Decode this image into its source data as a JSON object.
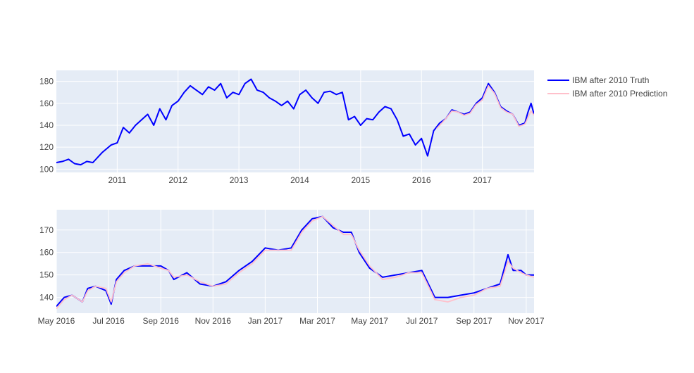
{
  "chart_data": [
    {
      "type": "line",
      "panel": "top",
      "xlabel": "",
      "ylabel": "",
      "xlim": [
        2010.0,
        2017.85
      ],
      "ylim": [
        97,
        190
      ],
      "x_ticks": [
        2011,
        2012,
        2013,
        2014,
        2015,
        2016,
        2017
      ],
      "x_tick_labels": [
        "2011",
        "2012",
        "2013",
        "2014",
        "2015",
        "2016",
        "2017"
      ],
      "y_ticks": [
        100,
        120,
        140,
        160,
        180
      ],
      "y_tick_labels": [
        "100",
        "120",
        "140",
        "160",
        "180"
      ],
      "grid": true,
      "series": [
        {
          "name": "IBM after 2010 Truth",
          "color": "#0000ff",
          "x": [
            2010.0,
            2010.1,
            2010.2,
            2010.3,
            2010.4,
            2010.5,
            2010.6,
            2010.75,
            2010.9,
            2011.0,
            2011.1,
            2011.2,
            2011.3,
            2011.4,
            2011.5,
            2011.6,
            2011.7,
            2011.8,
            2011.9,
            2012.0,
            2012.1,
            2012.2,
            2012.3,
            2012.4,
            2012.5,
            2012.6,
            2012.7,
            2012.8,
            2012.9,
            2013.0,
            2013.1,
            2013.2,
            2013.3,
            2013.4,
            2013.5,
            2013.6,
            2013.7,
            2013.8,
            2013.9,
            2014.0,
            2014.1,
            2014.2,
            2014.3,
            2014.4,
            2014.5,
            2014.6,
            2014.7,
            2014.8,
            2014.9,
            2015.0,
            2015.1,
            2015.2,
            2015.3,
            2015.4,
            2015.5,
            2015.6,
            2015.7,
            2015.8,
            2015.9,
            2016.0,
            2016.1,
            2016.2,
            2016.3,
            2016.4,
            2016.5,
            2016.6,
            2016.7,
            2016.8,
            2016.9,
            2017.0,
            2017.1,
            2017.2,
            2017.3,
            2017.4,
            2017.5,
            2017.6,
            2017.7,
            2017.75,
            2017.8,
            2017.85
          ],
          "y": [
            106,
            107,
            109,
            105,
            104,
            107,
            106,
            115,
            122,
            124,
            138,
            133,
            140,
            145,
            150,
            140,
            155,
            145,
            158,
            162,
            170,
            176,
            172,
            168,
            175,
            172,
            178,
            165,
            170,
            168,
            178,
            182,
            172,
            170,
            165,
            162,
            158,
            162,
            155,
            168,
            172,
            165,
            160,
            170,
            171,
            168,
            170,
            145,
            148,
            140,
            146,
            145,
            152,
            157,
            155,
            145,
            130,
            132,
            122,
            128,
            112,
            135,
            142,
            146,
            154,
            152,
            150,
            152,
            160,
            165,
            178,
            170,
            157,
            153,
            150,
            140,
            142,
            152,
            160,
            150
          ]
        },
        {
          "name": "IBM after 2010 Prediction",
          "color": "#ffc0cb",
          "x": [
            2016.25,
            2016.3,
            2016.4,
            2016.5,
            2016.6,
            2016.7,
            2016.8,
            2016.9,
            2017.0,
            2017.1,
            2017.2,
            2017.3,
            2017.4,
            2017.5,
            2017.6,
            2017.7,
            2017.75,
            2017.8,
            2017.85
          ],
          "y": [
            137,
            140,
            146,
            153,
            152,
            149,
            151,
            159,
            163,
            176,
            169,
            156,
            152,
            150,
            139,
            141,
            147,
            153,
            149
          ]
        }
      ]
    },
    {
      "type": "line",
      "panel": "bottom",
      "xlabel": "",
      "ylabel": "",
      "xlim": [
        0,
        18.3
      ],
      "ylim": [
        133,
        179
      ],
      "x_ticks": [
        0,
        2,
        4,
        6,
        8,
        10,
        12,
        14,
        16,
        18
      ],
      "x_tick_labels": [
        "May 2016",
        "Jul 2016",
        "Sep 2016",
        "Nov 2016",
        "Jan 2017",
        "Mar 2017",
        "May 2017",
        "Jul 2017",
        "Sep 2017",
        "Nov 2017"
      ],
      "y_ticks": [
        140,
        150,
        160,
        170
      ],
      "y_tick_labels": [
        "140",
        "150",
        "160",
        "170"
      ],
      "grid": true,
      "series": [
        {
          "name": "IBM after 2010 Truth",
          "color": "#0000ff",
          "x": [
            0,
            0.3,
            0.6,
            1.0,
            1.2,
            1.5,
            1.9,
            2.1,
            2.3,
            2.6,
            3.0,
            3.5,
            4.0,
            4.3,
            4.5,
            5.0,
            5.5,
            6.0,
            6.5,
            7.0,
            7.5,
            8.0,
            8.5,
            9.0,
            9.4,
            9.8,
            10.2,
            10.6,
            11.0,
            11.3,
            11.6,
            12.0,
            12.5,
            13.0,
            13.5,
            14.0,
            14.5,
            15.0,
            15.5,
            16.0,
            16.5,
            17.0,
            17.3,
            17.5,
            17.8,
            18.0,
            18.3
          ],
          "y": [
            136,
            140,
            141,
            138,
            144,
            145,
            143,
            137,
            148,
            152,
            154,
            154,
            154,
            152,
            148,
            151,
            146,
            145,
            147,
            152,
            156,
            162,
            161,
            162,
            170,
            175,
            176,
            171,
            169,
            169,
            160,
            153,
            149,
            150,
            151,
            152,
            140,
            140,
            141,
            142,
            144,
            146,
            159,
            152,
            152,
            150,
            150
          ]
        },
        {
          "name": "IBM after 2010 Prediction",
          "color": "#ffc0cb",
          "x": [
            0,
            0.3,
            0.6,
            1.0,
            1.2,
            1.5,
            1.9,
            2.1,
            2.3,
            2.6,
            3.0,
            3.5,
            4.0,
            4.3,
            4.5,
            5.0,
            5.5,
            6.0,
            6.5,
            7.0,
            7.5,
            8.0,
            8.5,
            9.0,
            9.4,
            9.8,
            10.2,
            10.6,
            11.0,
            11.3,
            11.6,
            12.0,
            12.5,
            13.0,
            13.5,
            14.0,
            14.5,
            15.0,
            15.5,
            16.0,
            16.5,
            17.0,
            17.3,
            17.5,
            17.8,
            18.0,
            18.3
          ],
          "y": [
            135,
            139,
            141,
            138,
            143,
            145,
            144,
            138,
            147,
            151,
            154,
            155,
            153,
            152,
            149,
            150,
            147,
            145,
            146,
            151,
            155,
            161,
            161,
            161,
            169,
            174,
            176,
            172,
            168,
            168,
            161,
            154,
            148,
            149,
            151,
            151,
            139,
            138,
            140,
            141,
            144,
            145,
            156,
            153,
            151,
            150,
            149
          ]
        }
      ]
    }
  ],
  "legend": {
    "placement": "top-right",
    "items": [
      {
        "label": "IBM after 2010 Truth",
        "color": "#0000ff"
      },
      {
        "label": "IBM after 2010 Prediction",
        "color": "#ffc0cb"
      }
    ]
  }
}
